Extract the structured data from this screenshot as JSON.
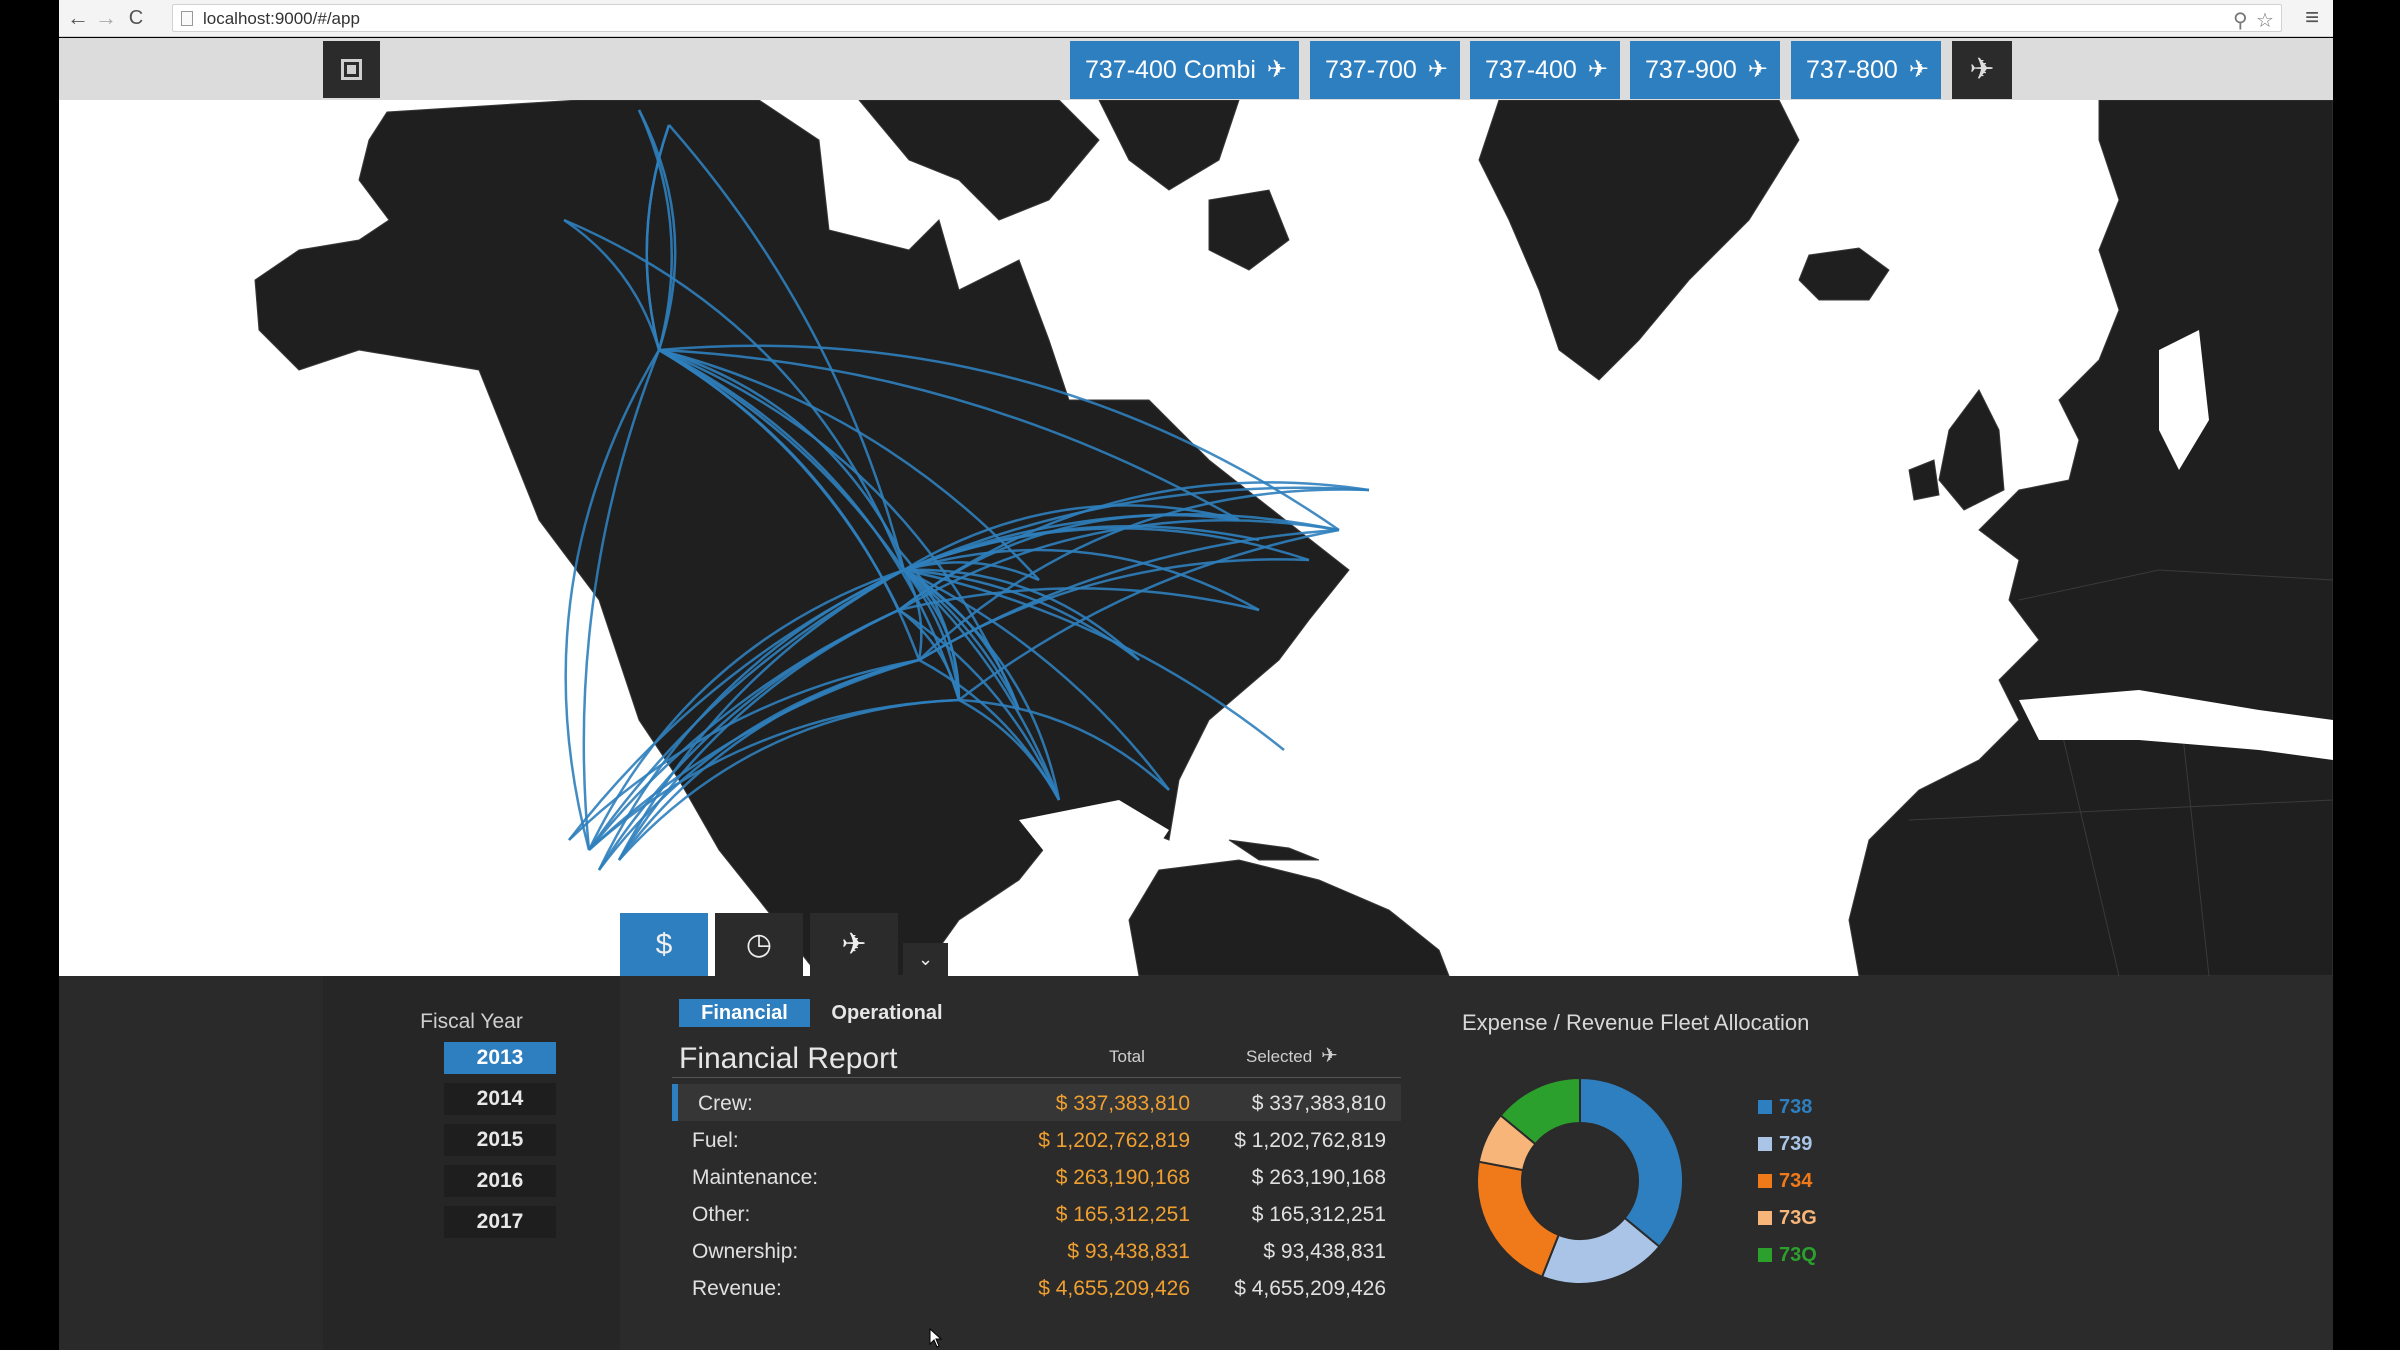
{
  "browser": {
    "url": "localhost:9000/#/app",
    "back_glyph": "←",
    "forward_glyph": "→",
    "reload_glyph": "C",
    "zoom_glyph": "⚲",
    "star_glyph": "☆",
    "menu_glyph": "≡"
  },
  "toolbar": {
    "filters": [
      {
        "label": "737-400 Combi"
      },
      {
        "label": "737-700"
      },
      {
        "label": "737-400"
      },
      {
        "label": "737-900"
      },
      {
        "label": "737-800"
      }
    ],
    "remove_glyph": "✈",
    "clear_glyph": "✈"
  },
  "map": {
    "land_color": "#1f1f1f",
    "route_color": "#2f7fbd",
    "mode_buttons": [
      {
        "icon": "dollar-icon",
        "glyph": "$"
      },
      {
        "icon": "clock-icon",
        "glyph": "◷"
      },
      {
        "icon": "plane-icon",
        "glyph": "✈"
      }
    ],
    "more_glyph": "⌄"
  },
  "fiscal": {
    "title": "Fiscal Year",
    "years": [
      "2013",
      "2014",
      "2015",
      "2016",
      "2017"
    ],
    "selected": "2013"
  },
  "report": {
    "tabs": [
      "Financial",
      "Operational"
    ],
    "active_tab": "Financial",
    "title": "Financial Report",
    "col_total": "Total",
    "col_selected": "Selected",
    "rows": [
      {
        "label": "Crew:",
        "total": "$ 337,383,810",
        "selected": "$ 337,383,810"
      },
      {
        "label": "Fuel:",
        "total": "$ 1,202,762,819",
        "selected": "$ 1,202,762,819"
      },
      {
        "label": "Maintenance:",
        "total": "$ 263,190,168",
        "selected": "$ 263,190,168"
      },
      {
        "label": "Other:",
        "total": "$ 165,312,251",
        "selected": "$ 165,312,251"
      },
      {
        "label": "Ownership:",
        "total": "$ 93,438,831",
        "selected": "$ 93,438,831"
      },
      {
        "label": "Revenue:",
        "total": "$ 4,655,209,426",
        "selected": "$ 4,655,209,426"
      }
    ]
  },
  "allocation": {
    "title": "Expense / Revenue Fleet Allocation",
    "legend": [
      {
        "label": "738",
        "color": "#2e7fc0"
      },
      {
        "label": "739",
        "color": "#a9c4e6"
      },
      {
        "label": "734",
        "color": "#f07a1a"
      },
      {
        "label": "73G",
        "color": "#f7b57a"
      },
      {
        "label": "73Q",
        "color": "#2ca02c"
      }
    ],
    "slices": [
      {
        "label": "738",
        "fraction": 0.36,
        "color": "#2e7fc0"
      },
      {
        "label": "739",
        "fraction": 0.2,
        "color": "#a9c4e6"
      },
      {
        "label": "734",
        "fraction": 0.22,
        "color": "#f07a1a"
      },
      {
        "label": "73G",
        "fraction": 0.08,
        "color": "#f7b57a"
      },
      {
        "label": "73Q",
        "fraction": 0.14,
        "color": "#2ca02c"
      }
    ]
  }
}
